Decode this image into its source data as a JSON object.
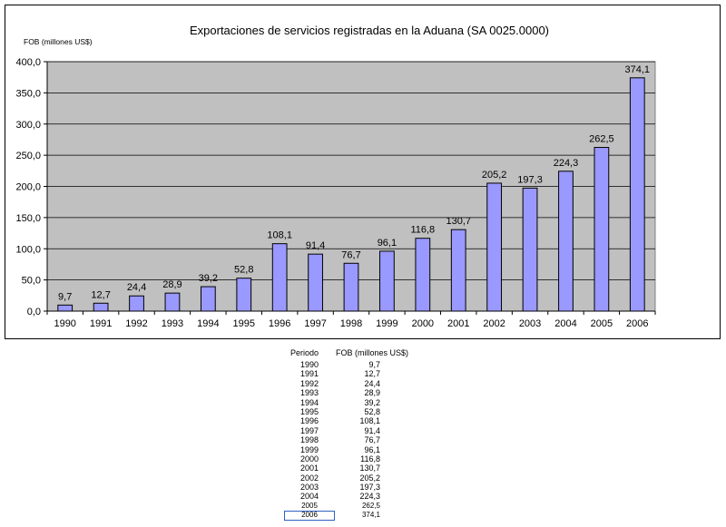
{
  "chart_data": {
    "type": "bar",
    "title": "Exportaciones de servicios registradas en la Aduana (SA 0025.0000)",
    "ylabel": "FOB (millones US$)",
    "xlabel": "",
    "categories": [
      "1990",
      "1991",
      "1992",
      "1993",
      "1994",
      "1995",
      "1996",
      "1997",
      "1998",
      "1999",
      "2000",
      "2001",
      "2002",
      "2003",
      "2004",
      "2005",
      "2006"
    ],
    "values": [
      9.7,
      12.7,
      24.4,
      28.9,
      39.2,
      52.8,
      108.1,
      91.4,
      76.7,
      96.1,
      116.8,
      130.7,
      205.2,
      197.3,
      224.3,
      262.5,
      374.1
    ],
    "value_labels": [
      "9,7",
      "12,7",
      "24,4",
      "28,9",
      "39,2",
      "52,8",
      "108,1",
      "91,4",
      "76,7",
      "96,1",
      "116,8",
      "130,7",
      "205,2",
      "197,3",
      "224,3",
      "262,5",
      "374,1"
    ],
    "ylim": [
      0,
      400
    ],
    "yticks": [
      "0,0",
      "50,0",
      "100,0",
      "150,0",
      "200,0",
      "250,0",
      "300,0",
      "350,0",
      "400,0"
    ],
    "grid": true,
    "legend": "none",
    "bar_color": "#9999ff",
    "plot_background": "#c0c0c0"
  },
  "table": {
    "headers": [
      "Periodo",
      "FOB (millones US$)"
    ],
    "rows": [
      [
        "1990",
        "9,7"
      ],
      [
        "1991",
        "12,7"
      ],
      [
        "1992",
        "24,4"
      ],
      [
        "1993",
        "28,9"
      ],
      [
        "1994",
        "39,2"
      ],
      [
        "1995",
        "52,8"
      ],
      [
        "1996",
        "108,1"
      ],
      [
        "1997",
        "91,4"
      ],
      [
        "1998",
        "76,7"
      ],
      [
        "1999",
        "96,1"
      ],
      [
        "2000",
        "116,8"
      ],
      [
        "2001",
        "130,7"
      ],
      [
        "2002",
        "205,2"
      ],
      [
        "2003",
        "197,3"
      ],
      [
        "2004",
        "224,3"
      ],
      [
        "2005",
        "262,5"
      ],
      [
        "2006",
        "374,1"
      ]
    ]
  }
}
